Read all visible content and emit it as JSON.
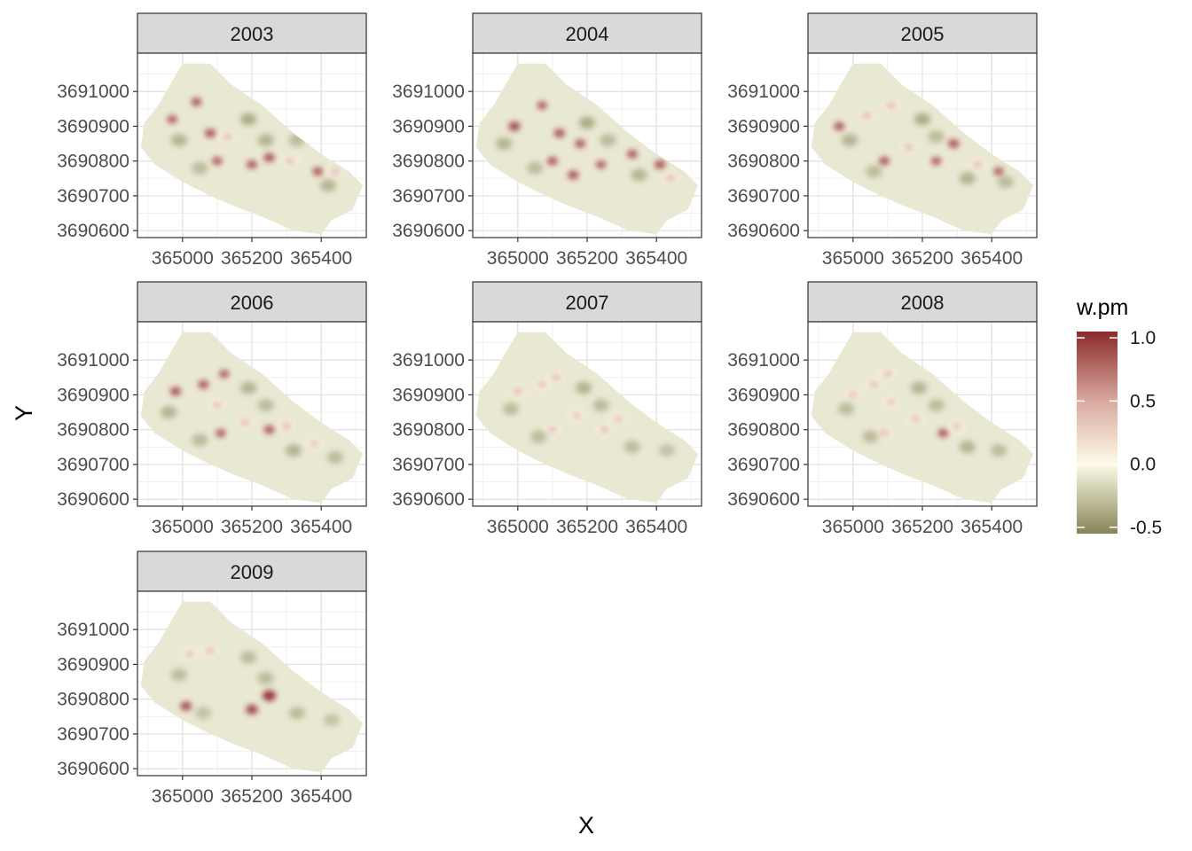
{
  "chart_data": {
    "type": "heatmap",
    "facet_variable": "year",
    "facets": [
      "2003",
      "2004",
      "2005",
      "2006",
      "2007",
      "2008",
      "2009"
    ],
    "xlabel": "X",
    "ylabel": "Y",
    "x_ticks": [
      "365000",
      "365200",
      "365400"
    ],
    "y_ticks": [
      "3691000",
      "3690900",
      "3690800",
      "3690700",
      "3690600"
    ],
    "xlim": [
      364870,
      365530
    ],
    "ylim": [
      3690580,
      3691110
    ],
    "grid": true,
    "legend": {
      "title": "w.pm",
      "placement": "right",
      "labels": [
        "1.0",
        "0.5",
        "0.0",
        "-0.5"
      ],
      "values": [
        1.0,
        0.5,
        0.0,
        -0.5
      ],
      "range": [
        -0.55,
        1.05
      ]
    },
    "colors": {
      "high": "#8b2a2a",
      "mid_high": "#d9a9a0",
      "zero": "#fdfbe8",
      "base": "#e9e8d3",
      "low": "#878556"
    },
    "region_outline": [
      [
        365000,
        3691080
      ],
      [
        365080,
        3691080
      ],
      [
        365140,
        3691020
      ],
      [
        365230,
        3690960
      ],
      [
        365320,
        3690880
      ],
      [
        365400,
        3690820
      ],
      [
        365480,
        3690770
      ],
      [
        365520,
        3690730
      ],
      [
        365490,
        3690660
      ],
      [
        365430,
        3690630
      ],
      [
        365400,
        3690590
      ],
      [
        365320,
        3690600
      ],
      [
        365230,
        3690640
      ],
      [
        365150,
        3690670
      ],
      [
        365080,
        3690700
      ],
      [
        365000,
        3690740
      ],
      [
        364920,
        3690790
      ],
      [
        364880,
        3690840
      ],
      [
        364890,
        3690910
      ],
      [
        364930,
        3690960
      ],
      [
        364970,
        3691030
      ]
    ],
    "hotspots_by_year": {
      "2003": [
        [
          364970,
          3690920,
          0.5
        ],
        [
          365040,
          3690970,
          0.55
        ],
        [
          365080,
          3690880,
          0.6
        ],
        [
          365130,
          3690870,
          0.45
        ],
        [
          365100,
          3690800,
          0.5
        ],
        [
          365200,
          3690790,
          0.55
        ],
        [
          365250,
          3690810,
          0.6
        ],
        [
          365310,
          3690800,
          0.4
        ],
        [
          365390,
          3690770,
          0.55
        ],
        [
          365440,
          3690770,
          0.45
        ],
        [
          364990,
          3690860,
          -0.35
        ],
        [
          365050,
          3690780,
          -0.3
        ],
        [
          365190,
          3690920,
          -0.4
        ],
        [
          365240,
          3690860,
          -0.35
        ],
        [
          365330,
          3690860,
          -0.3
        ],
        [
          365420,
          3690730,
          -0.35
        ]
      ],
      "2004": [
        [
          364990,
          3690900,
          0.7
        ],
        [
          365070,
          3690960,
          0.5
        ],
        [
          365120,
          3690880,
          0.6
        ],
        [
          365180,
          3690850,
          0.55
        ],
        [
          365100,
          3690800,
          0.55
        ],
        [
          365160,
          3690760,
          0.6
        ],
        [
          365240,
          3690790,
          0.5
        ],
        [
          365330,
          3690820,
          0.55
        ],
        [
          365410,
          3690790,
          0.6
        ],
        [
          365440,
          3690750,
          0.45
        ],
        [
          364960,
          3690850,
          -0.35
        ],
        [
          365050,
          3690780,
          -0.3
        ],
        [
          365200,
          3690910,
          -0.4
        ],
        [
          365260,
          3690860,
          -0.3
        ],
        [
          365350,
          3690760,
          -0.35
        ]
      ],
      "2005": [
        [
          364960,
          3690900,
          0.55
        ],
        [
          365040,
          3690930,
          0.45
        ],
        [
          365110,
          3690960,
          0.45
        ],
        [
          365090,
          3690800,
          0.55
        ],
        [
          365160,
          3690840,
          0.45
        ],
        [
          365240,
          3690800,
          0.5
        ],
        [
          365290,
          3690850,
          0.6
        ],
        [
          365360,
          3690790,
          0.45
        ],
        [
          365420,
          3690770,
          0.5
        ],
        [
          364990,
          3690860,
          -0.35
        ],
        [
          365060,
          3690770,
          -0.3
        ],
        [
          365200,
          3690920,
          -0.4
        ],
        [
          365240,
          3690870,
          -0.3
        ],
        [
          365330,
          3690750,
          -0.35
        ],
        [
          365440,
          3690740,
          -0.3
        ]
      ],
      "2006": [
        [
          364980,
          3690910,
          0.6
        ],
        [
          365060,
          3690930,
          0.55
        ],
        [
          365120,
          3690960,
          0.5
        ],
        [
          365100,
          3690870,
          0.4
        ],
        [
          365110,
          3690790,
          0.5
        ],
        [
          365180,
          3690820,
          0.45
        ],
        [
          365250,
          3690800,
          0.55
        ],
        [
          365300,
          3690810,
          0.45
        ],
        [
          365380,
          3690760,
          0.35
        ],
        [
          364960,
          3690850,
          -0.35
        ],
        [
          365050,
          3690770,
          -0.3
        ],
        [
          365190,
          3690920,
          -0.35
        ],
        [
          365240,
          3690870,
          -0.3
        ],
        [
          365320,
          3690740,
          -0.35
        ],
        [
          365440,
          3690720,
          -0.3
        ]
      ],
      "2007": [
        [
          365000,
          3690910,
          0.45
        ],
        [
          365070,
          3690930,
          0.4
        ],
        [
          365110,
          3690950,
          0.45
        ],
        [
          365100,
          3690800,
          0.4
        ],
        [
          365170,
          3690840,
          0.35
        ],
        [
          365250,
          3690800,
          0.4
        ],
        [
          365290,
          3690830,
          0.4
        ],
        [
          364980,
          3690860,
          -0.3
        ],
        [
          365060,
          3690780,
          -0.3
        ],
        [
          365190,
          3690920,
          -0.35
        ],
        [
          365240,
          3690870,
          -0.3
        ],
        [
          365330,
          3690750,
          -0.3
        ],
        [
          365430,
          3690740,
          -0.25
        ]
      ],
      "2008": [
        [
          365000,
          3690900,
          0.4
        ],
        [
          365060,
          3690930,
          0.4
        ],
        [
          365100,
          3690960,
          0.4
        ],
        [
          365110,
          3690880,
          0.35
        ],
        [
          365090,
          3690790,
          0.45
        ],
        [
          365180,
          3690830,
          0.4
        ],
        [
          365260,
          3690790,
          0.55
        ],
        [
          365300,
          3690810,
          0.35
        ],
        [
          364980,
          3690860,
          -0.3
        ],
        [
          365050,
          3690780,
          -0.3
        ],
        [
          365190,
          3690920,
          -0.35
        ],
        [
          365240,
          3690870,
          -0.3
        ],
        [
          365330,
          3690750,
          -0.35
        ],
        [
          365420,
          3690740,
          -0.3
        ]
      ],
      "2009": [
        [
          365020,
          3690930,
          0.35
        ],
        [
          365080,
          3690940,
          0.4
        ],
        [
          365010,
          3690780,
          0.65
        ],
        [
          365200,
          3690770,
          0.75
        ],
        [
          365250,
          3690810,
          0.95
        ],
        [
          364990,
          3690870,
          -0.3
        ],
        [
          365060,
          3690760,
          -0.25
        ],
        [
          365190,
          3690920,
          -0.3
        ],
        [
          365240,
          3690860,
          -0.3
        ],
        [
          365330,
          3690760,
          -0.3
        ],
        [
          365430,
          3690740,
          -0.25
        ]
      ]
    }
  }
}
